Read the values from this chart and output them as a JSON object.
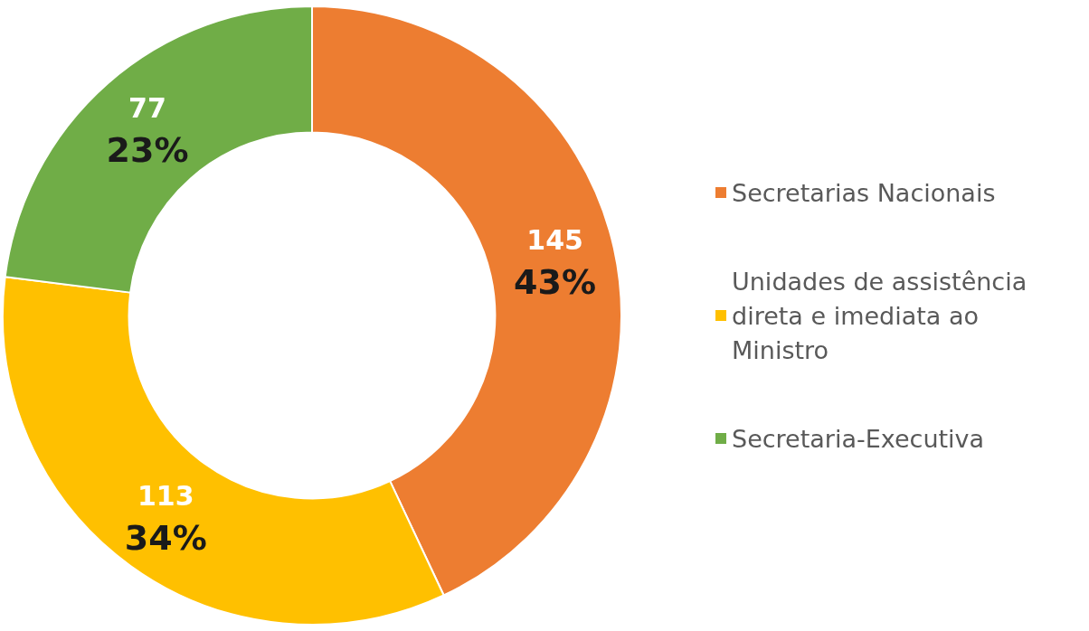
{
  "chart_data": {
    "type": "donut",
    "categories": [
      "Secretarias Nacionais",
      "Unidades de assistência direta e imediata ao Ministro",
      "Secretaria-Executiva"
    ],
    "values": [
      43,
      34,
      23
    ],
    "colors": [
      "#ed7d31",
      "#ffc000",
      "#70ad47"
    ],
    "value_labels": [
      "43%",
      "34%",
      "23%"
    ],
    "annotations": [
      {
        "text": "145",
        "x": "Secretarias Nacionais"
      },
      {
        "text": "113",
        "x": "Unidades de assistência direta e imediata ao Ministro"
      },
      {
        "text": "77",
        "x": "Secretaria-Executiva"
      }
    ],
    "legend": "right"
  }
}
